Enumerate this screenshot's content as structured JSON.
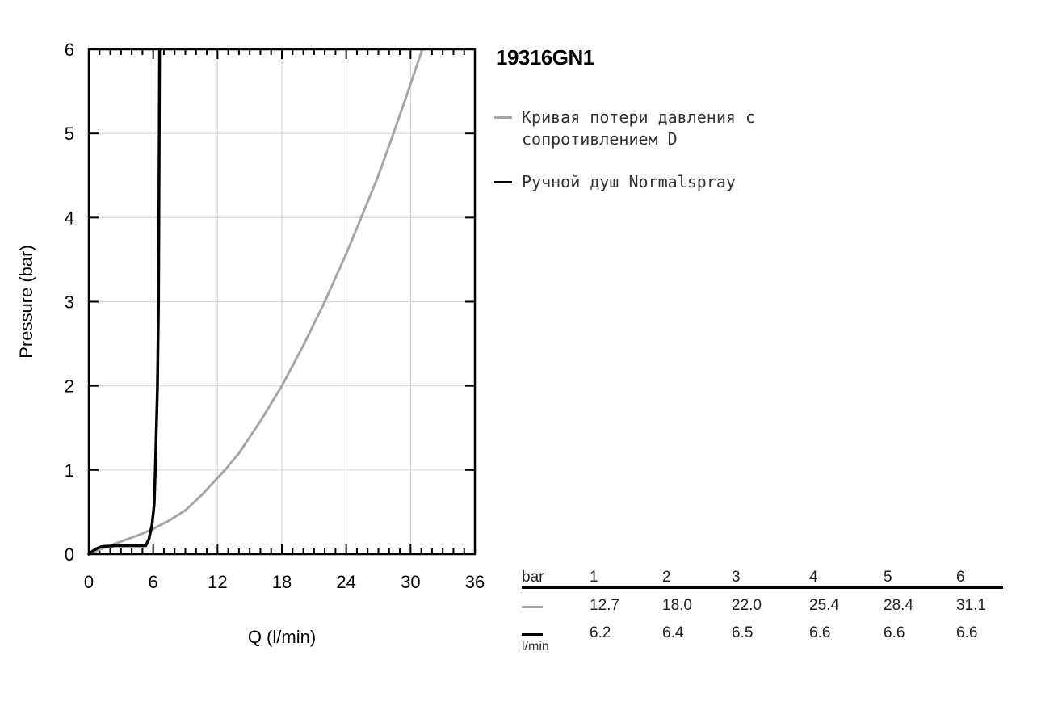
{
  "title": "19316GN1",
  "chart_data": {
    "type": "line",
    "xlabel": "Q (l/min)",
    "ylabel": "Pressure (bar)",
    "xlim": [
      0,
      36
    ],
    "ylim": [
      0,
      6
    ],
    "x_ticks": [
      "0",
      "6",
      "12",
      "18",
      "24",
      "30",
      "36"
    ],
    "y_ticks": [
      "0",
      "1",
      "2",
      "3",
      "4",
      "5",
      "6"
    ],
    "grid": true,
    "legend_position": "right",
    "series": [
      {
        "name": "Кривая потери давления с сопротивлением D",
        "color": "#a6a6a6",
        "x": [
          0,
          1.5,
          3,
          4.5,
          6,
          7.5,
          9,
          10.5,
          12.7,
          14,
          16,
          18.0,
          20,
          22.0,
          24,
          25.4,
          27,
          28.4,
          29.5,
          31.1
        ],
        "y": [
          0,
          0.08,
          0.15,
          0.22,
          0.3,
          0.4,
          0.52,
          0.7,
          1.0,
          1.2,
          1.58,
          2.0,
          2.48,
          3.0,
          3.57,
          4.0,
          4.5,
          5.0,
          5.4,
          6.0
        ]
      },
      {
        "name": "Ручной душ Normalspray",
        "color": "#000000",
        "x": [
          0,
          0.4,
          0.8,
          1.2,
          2.5,
          4.5,
          5.3,
          5.6,
          5.9,
          6.1,
          6.2,
          6.4,
          6.5,
          6.6
        ],
        "y": [
          0,
          0.04,
          0.07,
          0.09,
          0.1,
          0.1,
          0.1,
          0.18,
          0.35,
          0.6,
          1.0,
          2.0,
          3.0,
          6.0
        ]
      }
    ]
  },
  "table": {
    "header": [
      "bar",
      "1",
      "2",
      "3",
      "4",
      "5",
      "6"
    ],
    "rows": [
      {
        "color": "#a6a6a6",
        "values": [
          "12.7",
          "18.0",
          "22.0",
          "25.4",
          "28.4",
          "31.1"
        ]
      },
      {
        "color": "#000000",
        "values": [
          "6.2",
          "6.4",
          "6.5",
          "6.6",
          "6.6",
          "6.6"
        ]
      }
    ],
    "unit": "l/min"
  }
}
